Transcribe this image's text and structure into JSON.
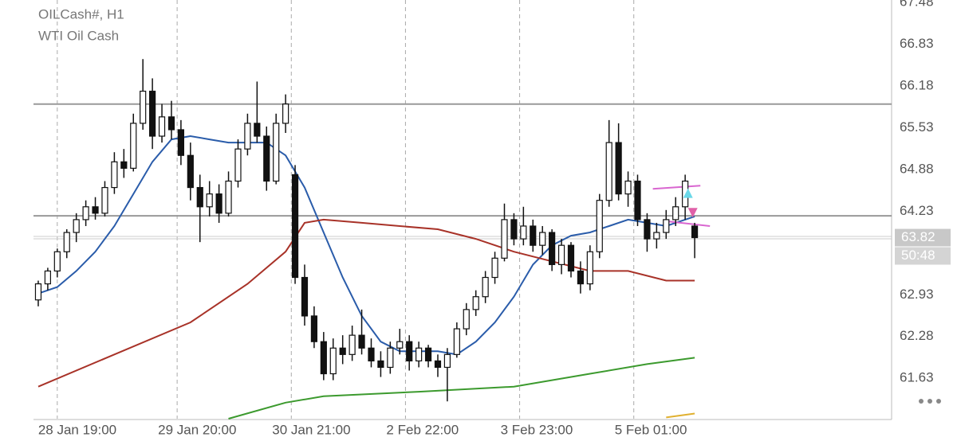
{
  "chart_data": {
    "type": "candlestick",
    "title": "OILCash#, H1",
    "subtitle": "WTI Oil Cash",
    "xlim": [
      -0.5,
      89.7
    ],
    "ylim": [
      61.0,
      67.52
    ],
    "yticks": [
      61.63,
      62.28,
      62.93,
      64.23,
      64.88,
      65.53,
      66.18,
      66.83,
      67.48
    ],
    "xticks": [
      {
        "value": 2.0,
        "label": "28 Jan 19:00"
      },
      {
        "value": 14.6,
        "label": "29 Jan 20:00"
      },
      {
        "value": 26.6,
        "label": "30 Jan 21:00"
      },
      {
        "value": 38.6,
        "label": "2 Feb 22:00"
      },
      {
        "value": 50.6,
        "label": "3 Feb 23:00"
      },
      {
        "value": 62.6,
        "label": "5 Feb 01:00"
      }
    ],
    "grid": true,
    "last_price": 63.82,
    "countdown": "50:48",
    "levels": [
      65.9,
      64.16
    ],
    "level_color": "#999999",
    "up_color": "#ffffff",
    "down_color": "#111111",
    "open": [
      62.85,
      63.1,
      63.3,
      63.6,
      63.9,
      64.1,
      64.3,
      64.2,
      64.6,
      65.0,
      64.9,
      65.6,
      66.1,
      65.4,
      65.7,
      65.5,
      65.1,
      64.6,
      64.3,
      64.5,
      64.2,
      64.7,
      65.2,
      65.6,
      65.4,
      64.7,
      65.6,
      64.8,
      63.2,
      62.6,
      62.2,
      61.7,
      62.1,
      62.0,
      62.3,
      62.1,
      61.9,
      61.8,
      62.1,
      62.2,
      61.9,
      62.1,
      61.9,
      61.8,
      62.0,
      62.4,
      62.7,
      62.9,
      63.2,
      63.5,
      64.1,
      63.8,
      64.0,
      63.7,
      63.9,
      63.4,
      63.7,
      63.3,
      63.1,
      63.6,
      64.4,
      65.3,
      64.5,
      64.7,
      64.1,
      63.8,
      63.9,
      64.1,
      64.3,
      64.0
    ],
    "high": [
      63.15,
      63.35,
      63.65,
      63.95,
      64.2,
      64.4,
      64.45,
      64.7,
      65.15,
      65.2,
      65.75,
      66.6,
      66.3,
      65.9,
      65.95,
      65.65,
      65.3,
      64.8,
      64.7,
      64.65,
      64.85,
      65.35,
      65.75,
      66.25,
      65.55,
      65.75,
      66.05,
      64.95,
      63.4,
      62.75,
      62.35,
      62.25,
      62.3,
      62.45,
      62.7,
      62.25,
      62.05,
      62.2,
      62.4,
      62.3,
      62.2,
      62.15,
      62.0,
      62.1,
      62.5,
      62.8,
      63.0,
      63.3,
      63.6,
      64.35,
      64.2,
      64.3,
      64.1,
      64.0,
      63.95,
      63.8,
      63.75,
      63.45,
      63.7,
      64.5,
      65.65,
      65.6,
      64.85,
      64.8,
      64.2,
      64.05,
      64.25,
      64.45,
      64.8,
      64.05
    ],
    "low": [
      62.75,
      63.0,
      63.2,
      63.5,
      63.75,
      64.0,
      64.1,
      64.15,
      64.5,
      64.75,
      64.85,
      65.5,
      65.2,
      65.3,
      65.35,
      64.95,
      64.4,
      63.75,
      64.15,
      64.05,
      64.15,
      64.6,
      65.1,
      65.3,
      64.55,
      64.65,
      65.45,
      63.1,
      62.45,
      62.1,
      61.6,
      61.6,
      61.85,
      61.9,
      62.0,
      61.8,
      61.65,
      61.7,
      62.0,
      61.75,
      61.8,
      61.8,
      61.65,
      61.27,
      61.95,
      62.3,
      62.6,
      62.8,
      63.1,
      63.45,
      63.7,
      63.7,
      63.6,
      63.55,
      63.3,
      63.25,
      63.2,
      62.95,
      63.0,
      63.5,
      64.3,
      64.4,
      64.3,
      64.0,
      63.6,
      63.65,
      63.8,
      64.0,
      64.1,
      63.5
    ],
    "close": [
      63.1,
      63.3,
      63.6,
      63.9,
      64.1,
      64.3,
      64.2,
      64.6,
      65.0,
      64.9,
      65.6,
      66.1,
      65.4,
      65.7,
      65.5,
      65.1,
      64.6,
      64.3,
      64.5,
      64.2,
      64.7,
      65.2,
      65.6,
      65.4,
      64.7,
      65.6,
      65.9,
      63.2,
      62.6,
      62.2,
      61.7,
      62.1,
      62.0,
      62.3,
      62.1,
      61.9,
      61.8,
      62.1,
      62.2,
      61.9,
      62.1,
      61.9,
      61.8,
      62.0,
      62.4,
      62.7,
      62.9,
      63.2,
      63.5,
      64.1,
      63.8,
      64.0,
      63.7,
      63.9,
      63.4,
      63.7,
      63.3,
      63.1,
      63.6,
      64.4,
      65.3,
      64.5,
      64.7,
      64.1,
      63.8,
      63.9,
      64.1,
      64.3,
      64.7,
      63.82
    ],
    "series": [
      {
        "color": "#2a5caa",
        "x": [
          0,
          2,
          4,
          6,
          8,
          10,
          12,
          14,
          16,
          18,
          20,
          22,
          24,
          26,
          28,
          30,
          32,
          34,
          36,
          38,
          40,
          42,
          44,
          46,
          48,
          50,
          52,
          54,
          56,
          58,
          60,
          62,
          64,
          66,
          68,
          69
        ],
        "values": [
          62.95,
          63.05,
          63.3,
          63.6,
          64.0,
          64.5,
          65.0,
          65.35,
          65.4,
          65.35,
          65.3,
          65.3,
          65.3,
          65.1,
          64.6,
          63.9,
          63.2,
          62.6,
          62.2,
          62.05,
          62.05,
          62.05,
          62.0,
          62.2,
          62.5,
          62.9,
          63.4,
          63.7,
          63.85,
          63.9,
          64.0,
          64.1,
          64.05,
          64.0,
          64.1,
          64.15
        ]
      },
      {
        "color": "#a83228",
        "x": [
          0,
          8,
          16,
          22,
          26,
          28,
          30,
          34,
          38,
          42,
          46,
          50,
          54,
          58,
          62,
          66,
          69
        ],
        "values": [
          61.5,
          62.0,
          62.5,
          63.1,
          63.6,
          64.05,
          64.1,
          64.05,
          64.0,
          63.95,
          63.8,
          63.6,
          63.45,
          63.3,
          63.3,
          63.15,
          63.15
        ]
      },
      {
        "color": "#3c9a2e",
        "x": [
          20,
          26,
          30,
          40,
          50,
          58,
          64,
          69
        ],
        "values": [
          61.0,
          61.25,
          61.35,
          61.42,
          61.5,
          61.7,
          61.85,
          61.95
        ]
      },
      {
        "color": "#e0b030",
        "x": [
          66,
          69
        ],
        "values": [
          61.02,
          61.08
        ]
      },
      {
        "color": "#d966d0",
        "x": [
          64.6,
          69.6
        ],
        "values": [
          64.58,
          64.63
        ]
      },
      {
        "color": "#d966d0",
        "x": [
          66.3,
          70.6
        ],
        "values": [
          64.07,
          64.0
        ]
      }
    ],
    "signals": [
      {
        "x": 68.3,
        "value": 64.5,
        "color": "#6ad8e8",
        "direction": "up"
      },
      {
        "x": 68.8,
        "value": 64.22,
        "color": "#e060a8",
        "direction": "down"
      }
    ]
  }
}
